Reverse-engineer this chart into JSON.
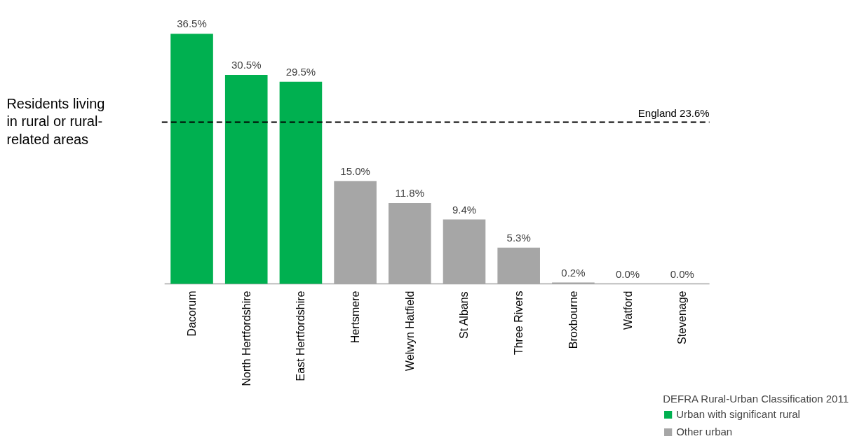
{
  "chart_data": {
    "type": "bar",
    "categories": [
      "Dacorum",
      "North Hertfordshire",
      "East Hertfordshire",
      "Hertsmere",
      "Welwyn Hatfield",
      "St Albans",
      "Three Rivers",
      "Broxbourne",
      "Watford",
      "Stevenage"
    ],
    "series": [
      {
        "name": "Urban with significant rural",
        "color": "#00b050",
        "values": [
          36.5,
          30.5,
          29.5,
          null,
          null,
          null,
          null,
          null,
          null,
          null
        ],
        "value_labels": [
          "36.5%",
          "30.5%",
          "29.5%",
          null,
          null,
          null,
          null,
          null,
          null,
          null
        ]
      },
      {
        "name": "Other urban",
        "color": "#a6a6a6",
        "values": [
          null,
          null,
          null,
          15.0,
          11.8,
          9.4,
          5.3,
          0.2,
          0.0,
          0.0
        ],
        "value_labels": [
          null,
          null,
          null,
          "15.0%",
          "11.8%",
          "9.4%",
          "5.3%",
          "0.2%",
          "0.0%",
          "0.0%"
        ]
      }
    ],
    "legend_title": "DEFRA Rural-Urban Classification 2011",
    "legend": "bottom right",
    "grid": false,
    "ref_lines": [
      {
        "axis": "y",
        "value": 23.6,
        "label": "England 23.6%",
        "color": "#000000",
        "line_style": "dashed"
      }
    ],
    "annotations": [
      "Residents living\nin rural or rural-\nrelated areas"
    ]
  }
}
